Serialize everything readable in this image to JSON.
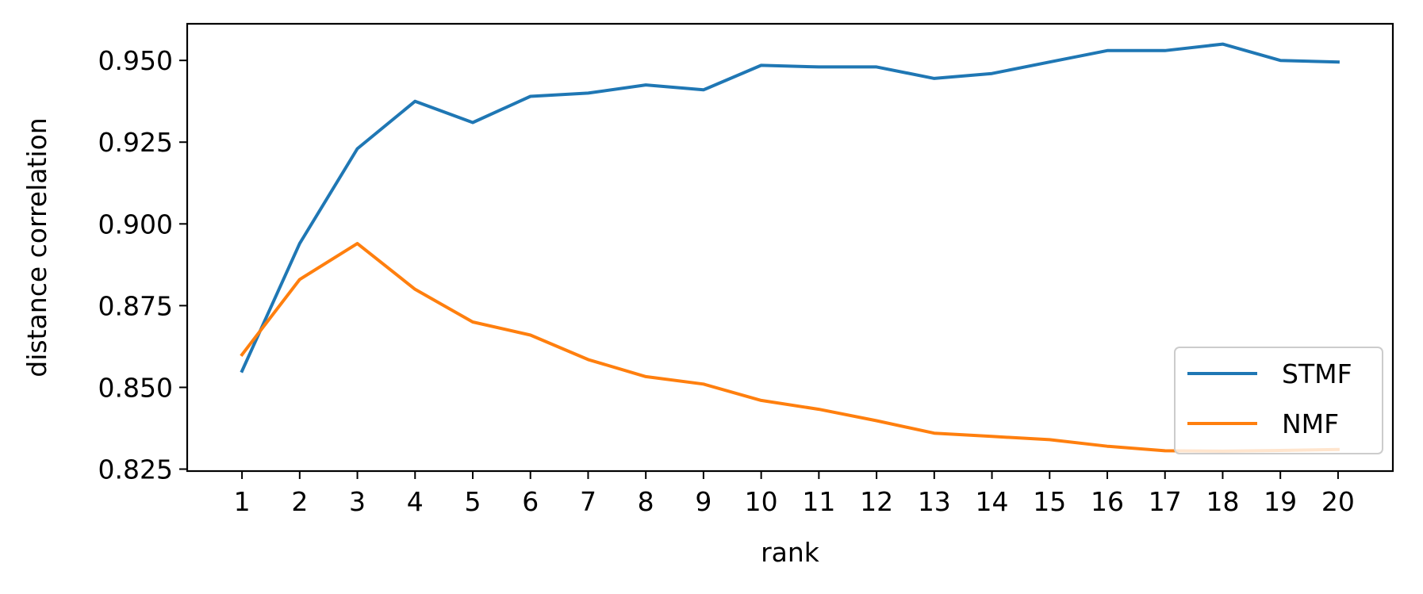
{
  "chart_data": {
    "type": "line",
    "title": "",
    "xlabel": "rank",
    "ylabel": "distance correlation",
    "x": [
      1,
      2,
      3,
      4,
      5,
      6,
      7,
      8,
      9,
      10,
      11,
      12,
      13,
      14,
      15,
      16,
      17,
      18,
      19,
      20
    ],
    "xlim": [
      0.05,
      20.95
    ],
    "ylim": [
      0.8244,
      0.9612
    ],
    "yticks": [
      0.825,
      0.85,
      0.875,
      0.9,
      0.925,
      0.95
    ],
    "ytick_labels": [
      "0.825",
      "0.850",
      "0.875",
      "0.900",
      "0.925",
      "0.950"
    ],
    "xtick_labels": [
      "1",
      "2",
      "3",
      "4",
      "5",
      "6",
      "7",
      "8",
      "9",
      "10",
      "11",
      "12",
      "13",
      "14",
      "15",
      "16",
      "17",
      "18",
      "19",
      "20"
    ],
    "grid": false,
    "legend_position": "lower right",
    "series": [
      {
        "name": "STMF",
        "color": "#1f77b4",
        "values": [
          0.855,
          0.894,
          0.923,
          0.9375,
          0.931,
          0.939,
          0.94,
          0.9425,
          0.941,
          0.9485,
          0.948,
          0.948,
          0.9445,
          0.946,
          0.9495,
          0.953,
          0.953,
          0.955,
          0.95,
          0.9495
        ]
      },
      {
        "name": "NMF",
        "color": "#ff7f0e",
        "values": [
          0.86,
          0.883,
          0.894,
          0.88,
          0.87,
          0.866,
          0.8585,
          0.8533,
          0.851,
          0.846,
          0.8433,
          0.8398,
          0.836,
          0.835,
          0.834,
          0.832,
          0.8306,
          0.8305,
          0.8307,
          0.831
        ]
      }
    ]
  }
}
